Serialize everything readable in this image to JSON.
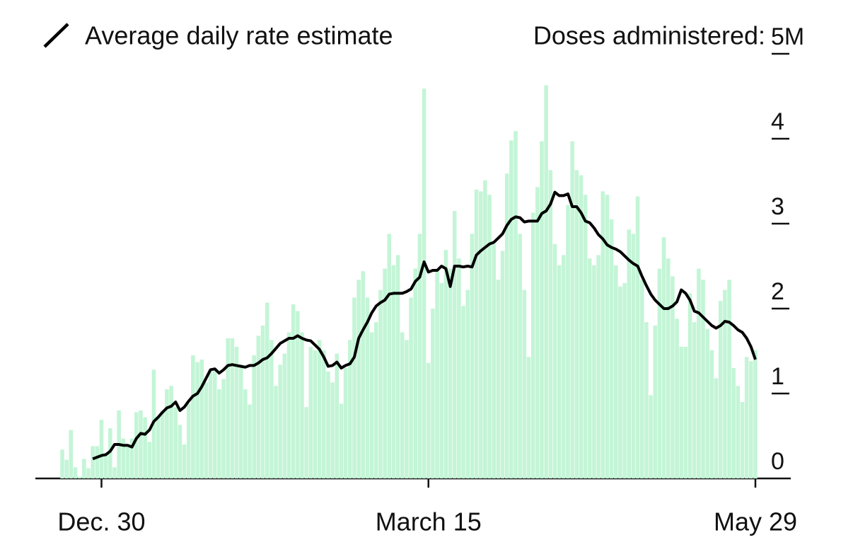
{
  "chart_data": {
    "type": "bar",
    "y_axis_label": "Doses administered:",
    "categories": [
      null,
      null,
      null,
      null,
      null,
      null,
      null,
      null,
      null,
      "Dec. 30",
      null,
      null,
      null,
      null,
      null,
      null,
      null,
      null,
      null,
      null,
      null,
      null,
      null,
      null,
      null,
      null,
      null,
      null,
      null,
      null,
      null,
      null,
      null,
      null,
      null,
      null,
      null,
      null,
      null,
      null,
      null,
      null,
      null,
      null,
      null,
      null,
      null,
      null,
      null,
      null,
      null,
      null,
      null,
      null,
      null,
      null,
      null,
      null,
      null,
      null,
      null,
      null,
      null,
      null,
      null,
      null,
      null,
      null,
      null,
      null,
      null,
      null,
      null,
      null,
      null,
      null,
      null,
      null,
      null,
      null,
      null,
      null,
      null,
      null,
      "March 15",
      null,
      null,
      null,
      null,
      null,
      null,
      null,
      null,
      null,
      null,
      null,
      null,
      null,
      null,
      null,
      null,
      null,
      null,
      null,
      null,
      null,
      null,
      null,
      null,
      null,
      null,
      null,
      null,
      null,
      null,
      null,
      null,
      null,
      null,
      null,
      null,
      null,
      null,
      null,
      null,
      null,
      null,
      null,
      null,
      null,
      null,
      null,
      null,
      null,
      null,
      null,
      null,
      null,
      null,
      null,
      null,
      null,
      null,
      null,
      null,
      null,
      null,
      null,
      null,
      null,
      null,
      null,
      null,
      null,
      null,
      null,
      null,
      null,
      null,
      "May 29"
    ],
    "series": [
      {
        "type": "bar",
        "color": "#c3f5d6",
        "values": [
          0.34,
          0.22,
          0.57,
          0.13,
          0.02,
          0.23,
          0.12,
          0.38,
          0.38,
          0.69,
          0.3,
          0.59,
          0.13,
          0.8,
          0.47,
          0.37,
          0.47,
          0.78,
          0.8,
          0.72,
          0.43,
          1.28,
          0.72,
          0.8,
          1.05,
          1.09,
          0.84,
          0.63,
          0.4,
          0.88,
          1.45,
          1.37,
          1.4,
          1.13,
          1.26,
          1.3,
          1.05,
          1.17,
          1.65,
          1.65,
          1.55,
          1.34,
          1.05,
          0.87,
          1.45,
          1.68,
          1.8,
          2.07,
          1.63,
          1.09,
          1.34,
          1.47,
          1.72,
          2.05,
          1.97,
          1.72,
          0.84,
          1.55,
          1.51,
          1.63,
          1.51,
          1.26,
          1.13,
          1.47,
          0.88,
          1.3,
          1.63,
          2.13,
          2.34,
          2.44,
          2.13,
          1.72,
          1.84,
          2.22,
          2.47,
          2.88,
          2.51,
          2.63,
          1.72,
          1.63,
          2.13,
          2.47,
          2.88,
          4.59,
          1.36,
          2.0,
          2.47,
          2.3,
          2.69,
          2.47,
          3.15,
          2.59,
          2.03,
          2.22,
          2.88,
          3.4,
          3.38,
          3.51,
          3.34,
          2.76,
          2.34,
          2.68,
          3.59,
          3.98,
          4.09,
          2.88,
          2.22,
          1.43,
          3.13,
          3.43,
          3.97,
          4.63,
          3.63,
          2.76,
          2.51,
          2.63,
          3.22,
          3.97,
          3.63,
          3.57,
          3.34,
          2.59,
          2.51,
          2.63,
          3.38,
          3.34,
          3.05,
          2.51,
          2.26,
          2.3,
          2.93,
          2.88,
          3.32,
          2.34,
          1.84,
          0.98,
          1.8,
          2.47,
          2.84,
          2.59,
          2.38,
          1.88,
          1.55,
          1.55,
          2.18,
          1.84,
          2.47,
          2.34,
          1.76,
          1.51,
          1.18,
          2.09,
          2.22,
          2.34,
          1.3,
          1.09,
          0.9,
          1.43,
          1.38,
          1.51
        ]
      },
      {
        "type": "line",
        "name": "Average daily rate estimate",
        "color": "#000000",
        "values": [
          null,
          null,
          null,
          null,
          null,
          null,
          null,
          0.23,
          0.25,
          0.27,
          0.28,
          0.32,
          0.4,
          0.4,
          0.39,
          0.39,
          0.37,
          0.47,
          0.53,
          0.52,
          0.57,
          0.67,
          0.72,
          0.78,
          0.83,
          0.85,
          0.9,
          0.8,
          0.84,
          0.91,
          0.97,
          1.0,
          1.08,
          1.18,
          1.28,
          1.29,
          1.24,
          1.28,
          1.33,
          1.34,
          1.33,
          1.32,
          1.31,
          1.33,
          1.33,
          1.36,
          1.4,
          1.42,
          1.47,
          1.53,
          1.59,
          1.62,
          1.65,
          1.65,
          1.68,
          1.65,
          1.63,
          1.62,
          1.57,
          1.52,
          1.43,
          1.32,
          1.33,
          1.37,
          1.3,
          1.33,
          1.35,
          1.43,
          1.65,
          1.75,
          1.84,
          1.95,
          2.03,
          2.07,
          2.1,
          2.17,
          2.18,
          2.18,
          2.18,
          2.2,
          2.23,
          2.32,
          2.37,
          2.55,
          2.43,
          2.45,
          2.45,
          2.5,
          2.47,
          2.26,
          2.5,
          2.5,
          2.49,
          2.5,
          2.49,
          2.63,
          2.68,
          2.72,
          2.76,
          2.78,
          2.83,
          2.88,
          2.98,
          3.05,
          3.08,
          3.07,
          3.02,
          3.03,
          3.03,
          3.03,
          3.12,
          3.15,
          3.23,
          3.37,
          3.33,
          3.33,
          3.35,
          3.2,
          3.2,
          3.13,
          3.03,
          3.01,
          2.95,
          2.87,
          2.82,
          2.75,
          2.72,
          2.7,
          2.67,
          2.62,
          2.57,
          2.53,
          2.5,
          2.38,
          2.27,
          2.17,
          2.1,
          2.05,
          2.0,
          2.0,
          2.03,
          2.08,
          2.22,
          2.18,
          2.1,
          1.97,
          1.95,
          1.9,
          1.85,
          1.8,
          1.77,
          1.8,
          1.85,
          1.84,
          1.8,
          1.75,
          1.72,
          1.65,
          1.55,
          1.4
        ]
      }
    ],
    "ylim": [
      0,
      5
    ],
    "yticks": [
      0,
      1,
      2,
      3,
      4,
      {
        "value": 5,
        "label": "5M"
      }
    ],
    "legend": "top-left"
  }
}
